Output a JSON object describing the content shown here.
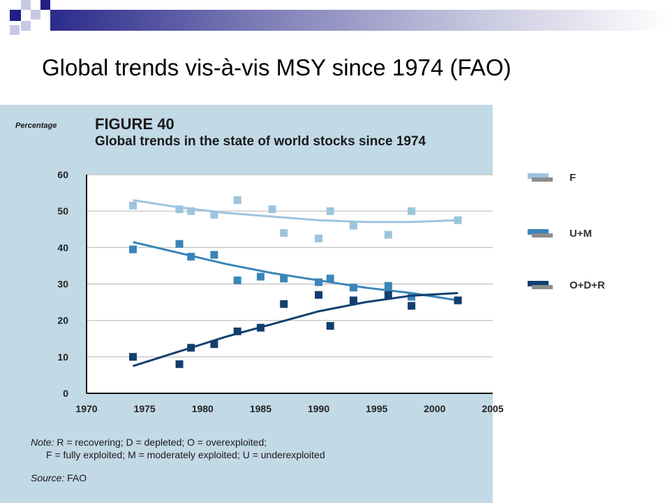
{
  "slide": {
    "title": "Global trends vis-à-vis MSY since 1974 (FAO)"
  },
  "figure": {
    "label": "FIGURE 40",
    "title": "Global trends in the state of world stocks since 1974",
    "ylabel": "Percentage",
    "note_prefix": "Note:",
    "note_line1": "R = recovering; D = depleted; O = overexploited;",
    "note_line2": "F = fully exploited; M = moderately exploited; U = underexploited",
    "source_prefix": "Source:",
    "source_value": "FAO"
  },
  "colors": {
    "panel_bg": "#c2d9e6",
    "F": "#9dc4de",
    "UM": "#3a86b8",
    "ODR": "#123f6e"
  },
  "chart_data": {
    "type": "scatter",
    "title": "Global trends in the state of world stocks since 1974",
    "xlabel": "",
    "ylabel": "Percentage",
    "xlim": [
      1970,
      2005
    ],
    "ylim": [
      0,
      60
    ],
    "xticks": [
      1970,
      1975,
      1980,
      1985,
      1990,
      1995,
      2000,
      2005
    ],
    "yticks": [
      0,
      10,
      20,
      30,
      40,
      50,
      60
    ],
    "grid": true,
    "legend": "right",
    "series": [
      {
        "name": "F",
        "color": "#9dc4de",
        "points": [
          [
            1974,
            51.5
          ],
          [
            1978,
            50.5
          ],
          [
            1979,
            50
          ],
          [
            1981,
            49
          ],
          [
            1983,
            53
          ],
          [
            1986,
            50.5
          ],
          [
            1987,
            44
          ],
          [
            1990,
            42.5
          ],
          [
            1991,
            50
          ],
          [
            1993,
            46
          ],
          [
            1996,
            43.5
          ],
          [
            1998,
            50
          ],
          [
            2002,
            47.5
          ]
        ],
        "trend": [
          [
            1974,
            53
          ],
          [
            1978,
            51
          ],
          [
            1982,
            49.5
          ],
          [
            1986,
            48.5
          ],
          [
            1990,
            47.5
          ],
          [
            1994,
            47
          ],
          [
            1998,
            47
          ],
          [
            2002,
            47.5
          ]
        ]
      },
      {
        "name": "U+M",
        "color": "#3a86b8",
        "points": [
          [
            1974,
            39.5
          ],
          [
            1978,
            41
          ],
          [
            1979,
            37.5
          ],
          [
            1981,
            38
          ],
          [
            1983,
            31
          ],
          [
            1985,
            32
          ],
          [
            1987,
            31.5
          ],
          [
            1990,
            30.5
          ],
          [
            1991,
            31.5
          ],
          [
            1993,
            29
          ],
          [
            1996,
            29.5
          ],
          [
            1998,
            26.5
          ],
          [
            2002,
            25.5
          ]
        ],
        "trend": [
          [
            1974,
            41.5
          ],
          [
            1978,
            38.5
          ],
          [
            1982,
            35.5
          ],
          [
            1986,
            33
          ],
          [
            1990,
            31
          ],
          [
            1994,
            29
          ],
          [
            1998,
            27.5
          ],
          [
            2002,
            25.5
          ]
        ]
      },
      {
        "name": "O+D+R",
        "color": "#123f6e",
        "points": [
          [
            1974,
            10
          ],
          [
            1978,
            8
          ],
          [
            1979,
            12.5
          ],
          [
            1981,
            13.5
          ],
          [
            1983,
            17
          ],
          [
            1985,
            18
          ],
          [
            1987,
            24.5
          ],
          [
            1990,
            27
          ],
          [
            1991,
            18.5
          ],
          [
            1993,
            25.5
          ],
          [
            1996,
            27
          ],
          [
            1998,
            24
          ],
          [
            2002,
            25.5
          ]
        ],
        "trend": [
          [
            1974,
            7.5
          ],
          [
            1978,
            11.5
          ],
          [
            1982,
            15.5
          ],
          [
            1986,
            19
          ],
          [
            1990,
            22.5
          ],
          [
            1994,
            25
          ],
          [
            1998,
            26.8
          ],
          [
            2002,
            27.5
          ]
        ]
      }
    ]
  }
}
